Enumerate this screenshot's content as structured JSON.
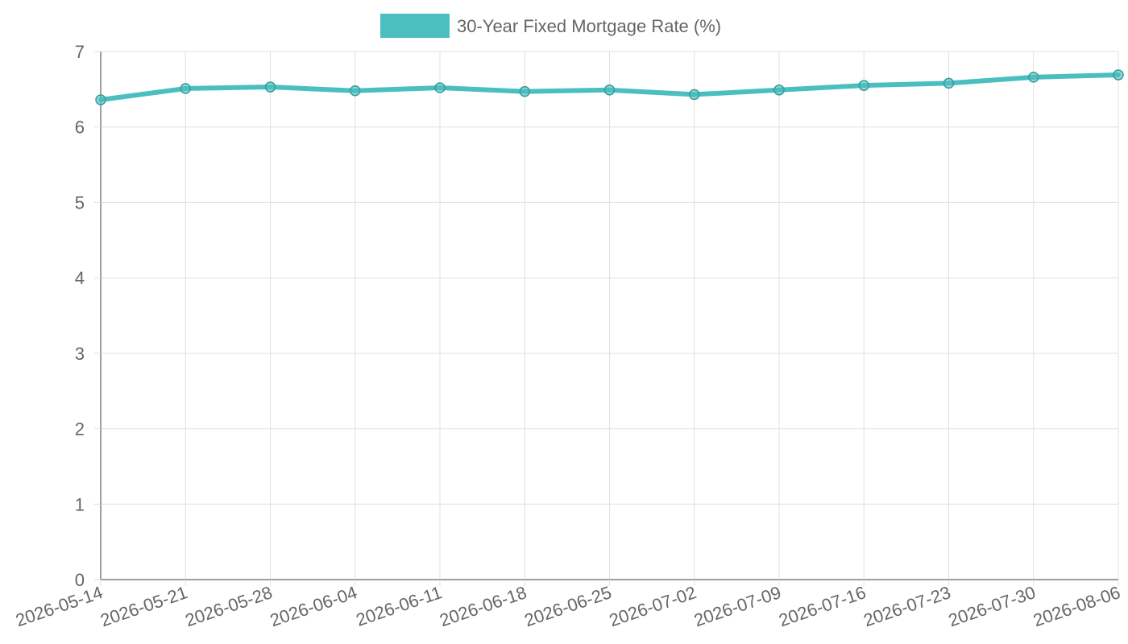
{
  "chart_data": {
    "type": "line",
    "x": [
      "2026-05-14",
      "2026-05-21",
      "2026-05-28",
      "2026-06-04",
      "2026-06-11",
      "2026-06-18",
      "2026-06-25",
      "2026-07-02",
      "2026-07-09",
      "2026-07-16",
      "2026-07-23",
      "2026-07-30",
      "2026-08-06"
    ],
    "series": [
      {
        "name": "30-Year Fixed Mortgage Rate (%)",
        "values": [
          6.36,
          6.51,
          6.53,
          6.48,
          6.52,
          6.47,
          6.49,
          6.43,
          6.49,
          6.55,
          6.58,
          6.66,
          6.69
        ],
        "color": "#4bbfbf"
      }
    ],
    "ylim": [
      0,
      7
    ],
    "yticks": [
      "0",
      "1",
      "2",
      "3",
      "4",
      "5",
      "6",
      "7"
    ],
    "grid": true,
    "legend_position": "top-center"
  }
}
